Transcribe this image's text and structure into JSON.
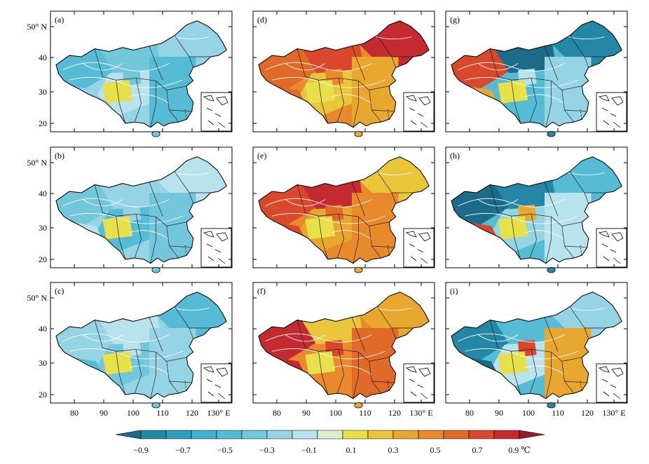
{
  "panels": [
    {
      "label": "(a)",
      "scheme": "cool"
    },
    {
      "label": "(b)",
      "scheme": "cool"
    },
    {
      "label": "(c)",
      "scheme": "cool"
    },
    {
      "label": "(d)",
      "scheme": "warm"
    },
    {
      "label": "(e)",
      "scheme": "warm"
    },
    {
      "label": "(f)",
      "scheme": "warm"
    },
    {
      "label": "(g)",
      "scheme": "mixed"
    },
    {
      "label": "(h)",
      "scheme": "mixed"
    },
    {
      "label": "(i)",
      "scheme": "mixed"
    }
  ],
  "y_ticks": [
    "50° N",
    "40",
    "30",
    "20"
  ],
  "x_ticks": [
    "80",
    "90",
    "100",
    "110",
    "120",
    "130° E"
  ],
  "colorbar": {
    "labels": [
      "−0.9",
      "−0.7",
      "−0.5",
      "−0.3",
      "−0.1",
      "0.1",
      "0.3",
      "0.5",
      "0.7",
      "0.9 ℃"
    ],
    "colors": [
      "#1d6b8a",
      "#2587a6",
      "#2e9fc0",
      "#3fb0cf",
      "#56bcd6",
      "#72c7dc",
      "#94d4e4",
      "#b8e2ec",
      "#dceecc",
      "#e8e04a",
      "#e9c63a",
      "#e8a830",
      "#e88a2c",
      "#e26a28",
      "#d9482a",
      "#c42a30",
      "#9a1c2a"
    ]
  },
  "palettes": {
    "cool": [
      "#56bcd6",
      "#72c7dc",
      "#94d4e4",
      "#b8e2ec"
    ],
    "warm": [
      "#e9c63a",
      "#e8a830",
      "#e88a2c",
      "#e26a28",
      "#d9482a",
      "#c42a30"
    ],
    "mixed": [
      "#1d6b8a",
      "#2587a6",
      "#56bcd6",
      "#94d4e4",
      "#b8e2ec",
      "#e8a830",
      "#d9482a"
    ]
  }
}
